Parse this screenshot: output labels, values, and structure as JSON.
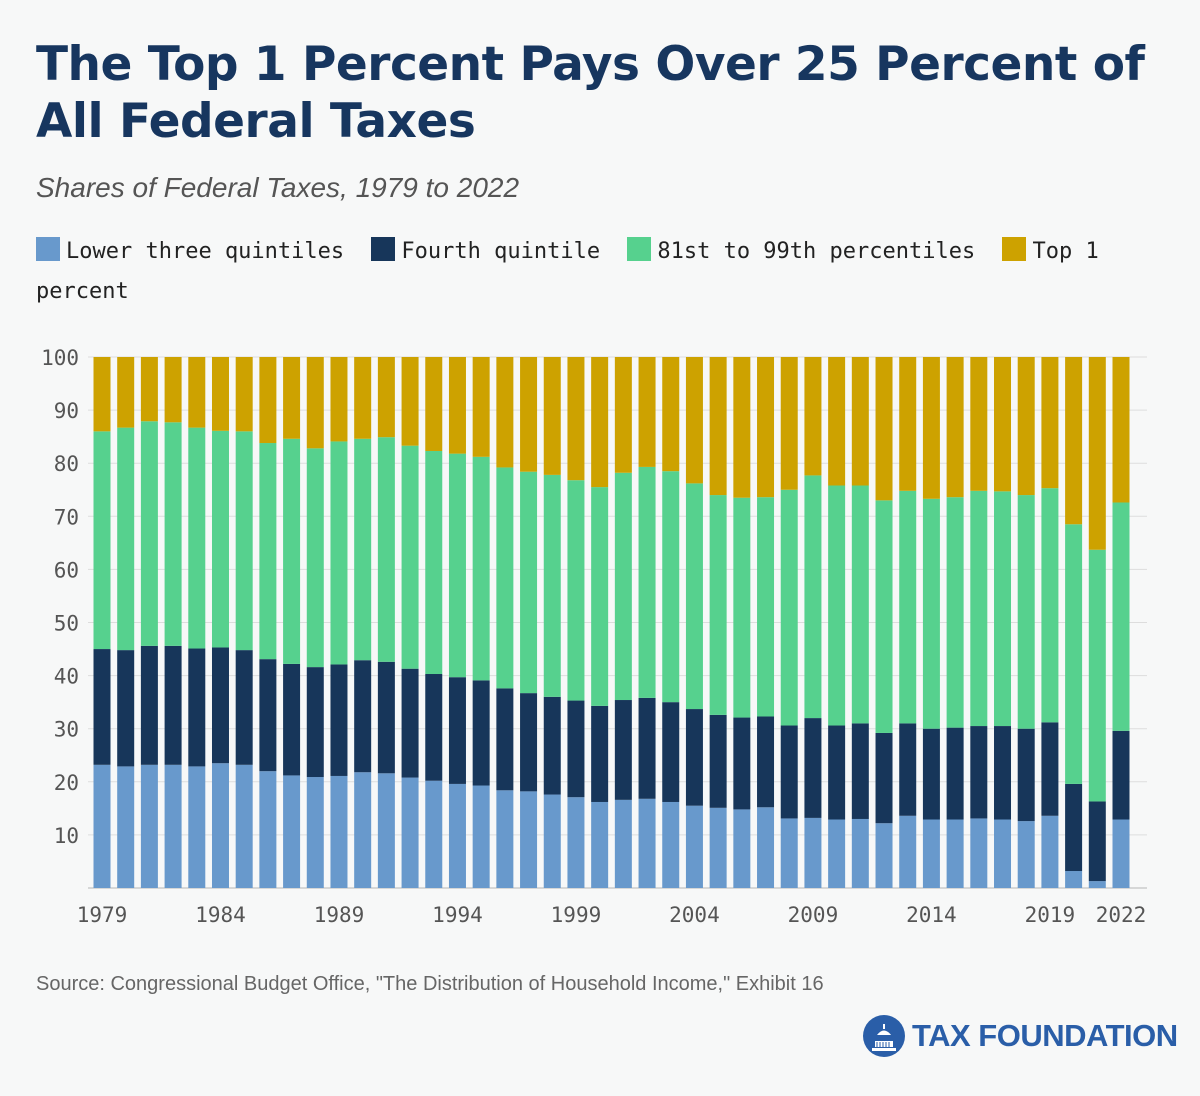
{
  "title": "The Top 1 Percent Pays Over 25 Percent of All Federal Taxes",
  "subtitle": "Shares of Federal Taxes, 1979 to 2022",
  "source": "Source: Congressional Budget Office, \"The Distribution of Household Income,\" Exhibit 16",
  "logo_text": "TAX FOUNDATION",
  "chart_data": {
    "type": "bar",
    "stacked": true,
    "title": "The Top 1 Percent Pays Over 25 Percent of All Federal Taxes",
    "subtitle": "Shares of Federal Taxes, 1979 to 2022",
    "xlabel": "",
    "ylabel": "",
    "ylim": [
      0,
      100
    ],
    "yticks": [
      10,
      20,
      30,
      40,
      50,
      60,
      70,
      80,
      90,
      100
    ],
    "xtick_labels": [
      "1979",
      "1984",
      "1989",
      "1994",
      "1999",
      "2004",
      "2009",
      "2014",
      "2019",
      "2022"
    ],
    "grid": true,
    "legend_position": "top",
    "categories": [
      "1979",
      "1980",
      "1981",
      "1982",
      "1983",
      "1984",
      "1985",
      "1986",
      "1987",
      "1988",
      "1989",
      "1990",
      "1991",
      "1992",
      "1993",
      "1994",
      "1995",
      "1996",
      "1997",
      "1998",
      "1999",
      "2000",
      "2001",
      "2002",
      "2003",
      "2004",
      "2005",
      "2006",
      "2007",
      "2008",
      "2009",
      "2010",
      "2011",
      "2012",
      "2013",
      "2014",
      "2015",
      "2016",
      "2017",
      "2018",
      "2019",
      "2020",
      "2021",
      "2022"
    ],
    "series": [
      {
        "name": "Lower three quintiles",
        "color": "#6899cc",
        "values": [
          23.2,
          22.9,
          23.2,
          23.2,
          22.9,
          23.5,
          23.2,
          22.0,
          21.2,
          20.9,
          21.1,
          21.8,
          21.6,
          20.8,
          20.2,
          19.6,
          19.3,
          18.4,
          18.2,
          17.6,
          17.1,
          16.2,
          16.6,
          16.8,
          16.2,
          15.5,
          15.1,
          14.8,
          15.2,
          13.1,
          13.2,
          12.9,
          13.0,
          12.2,
          13.6,
          12.9,
          12.9,
          13.1,
          12.9,
          12.6,
          13.6,
          3.2,
          1.3,
          12.9
        ]
      },
      {
        "name": "Fourth quintile",
        "color": "#17365a",
        "values": [
          21.8,
          21.9,
          22.4,
          22.4,
          22.2,
          21.8,
          21.6,
          21.1,
          21.0,
          20.7,
          21.0,
          21.1,
          21.0,
          20.5,
          20.1,
          20.1,
          19.8,
          19.2,
          18.5,
          18.4,
          18.2,
          18.1,
          18.8,
          19.0,
          18.8,
          18.2,
          17.5,
          17.3,
          17.1,
          17.5,
          18.8,
          17.7,
          18.0,
          17.0,
          17.4,
          17.1,
          17.3,
          17.4,
          17.6,
          17.4,
          17.6,
          16.4,
          15.0,
          16.7
        ]
      },
      {
        "name": "81st to 99th percentiles",
        "color": "#56d18e",
        "values": [
          41.0,
          41.9,
          42.3,
          42.1,
          41.6,
          40.8,
          41.2,
          40.7,
          42.4,
          41.2,
          42.0,
          41.7,
          42.3,
          42.0,
          42.0,
          42.1,
          42.1,
          41.6,
          41.7,
          41.8,
          41.5,
          41.2,
          42.8,
          43.5,
          43.5,
          42.5,
          41.4,
          41.4,
          41.3,
          44.4,
          45.7,
          45.2,
          44.8,
          43.8,
          43.8,
          43.3,
          43.4,
          44.3,
          44.2,
          44.0,
          44.1,
          48.9,
          47.4,
          43.0
        ]
      },
      {
        "name": "Top 1 percent",
        "color": "#cda200",
        "values": [
          14.0,
          13.3,
          12.1,
          12.3,
          13.3,
          13.9,
          14.0,
          16.2,
          15.4,
          17.2,
          15.9,
          15.4,
          15.1,
          16.7,
          17.7,
          18.2,
          18.8,
          20.8,
          21.6,
          22.2,
          23.2,
          24.5,
          21.8,
          20.7,
          21.5,
          23.8,
          26.0,
          26.5,
          26.4,
          25.0,
          22.3,
          24.2,
          24.2,
          27.0,
          25.2,
          26.7,
          26.4,
          25.2,
          25.3,
          26.0,
          24.7,
          31.5,
          36.3,
          27.4
        ]
      }
    ]
  }
}
